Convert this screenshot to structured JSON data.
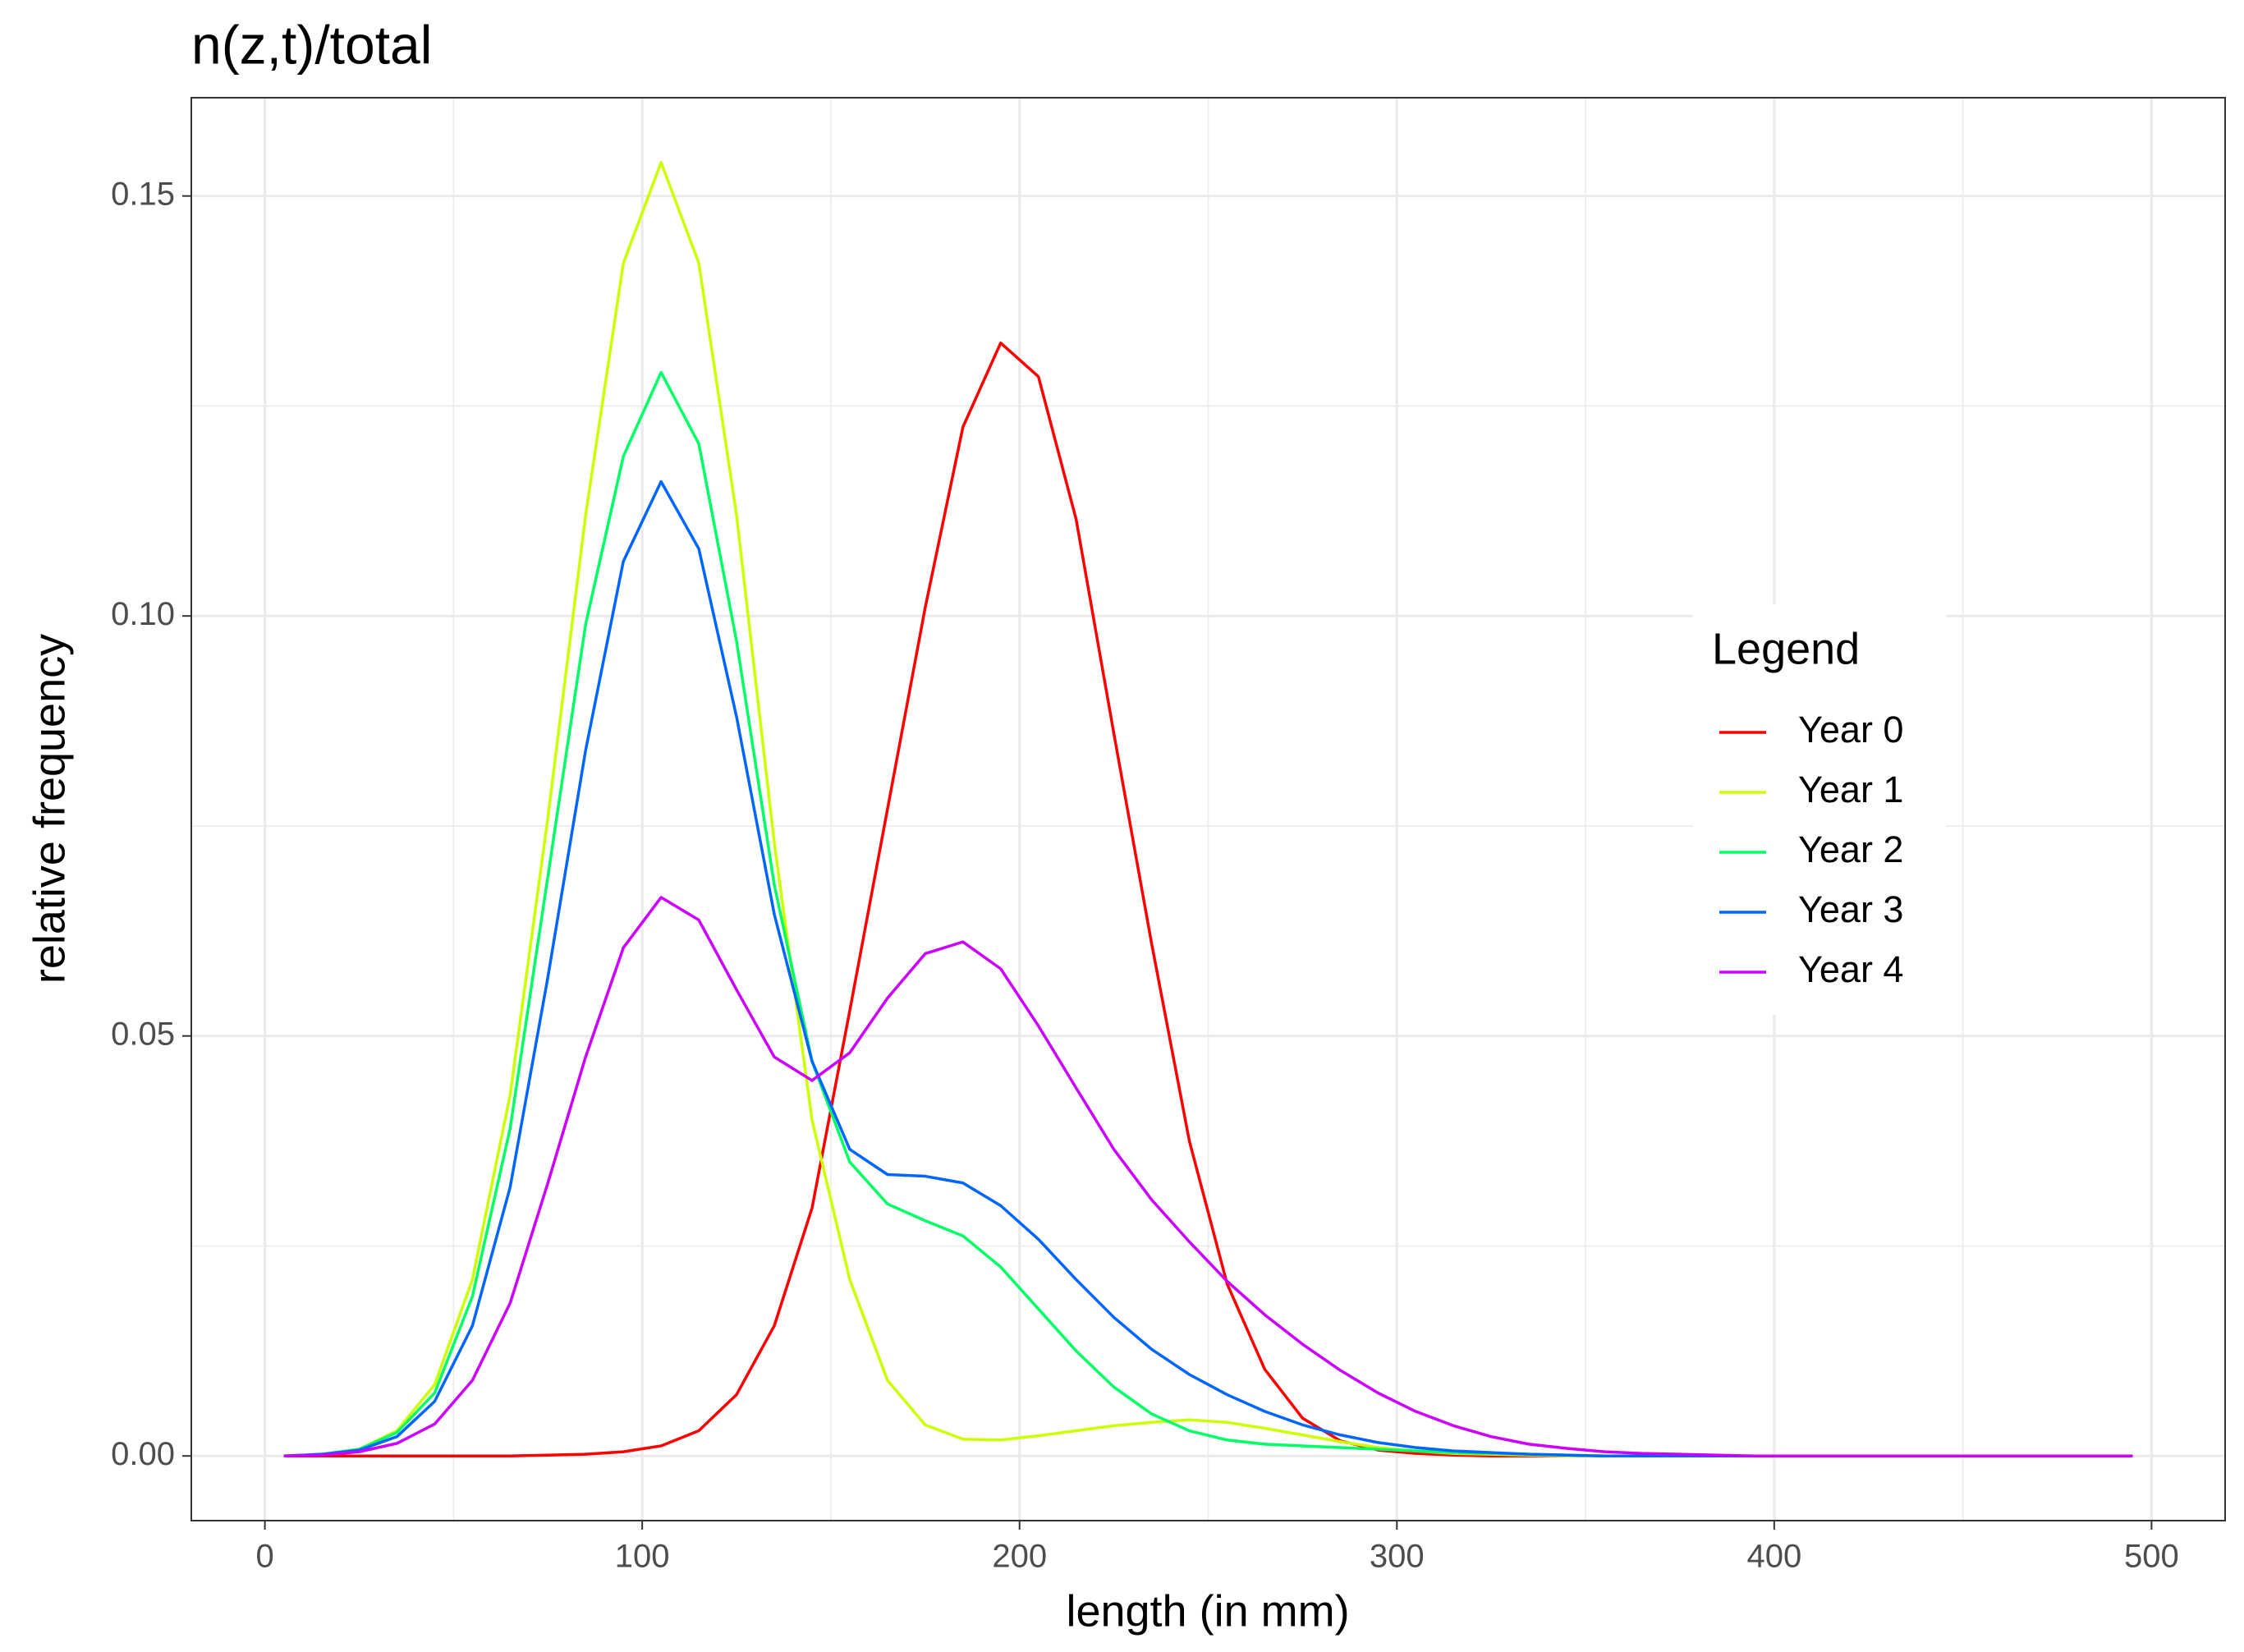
{
  "chart_data": {
    "type": "line",
    "title": "n(z,t)/total",
    "x_label": "length (in mm)",
    "y_label": "relative frequency",
    "legend_title": "Legend",
    "legend": "right",
    "grid": true,
    "minor_grid": true,
    "x": [
      5,
      15,
      25,
      35,
      45,
      55,
      65,
      75,
      85,
      95,
      105,
      115,
      125,
      135,
      145,
      155,
      165,
      175,
      185,
      195,
      205,
      215,
      225,
      235,
      245,
      255,
      265,
      275,
      285,
      295,
      305,
      315,
      325,
      335,
      345,
      355,
      365,
      375,
      385,
      395,
      405,
      415,
      425,
      435,
      445,
      455,
      465,
      475,
      485,
      495
    ],
    "series": [
      {
        "name": "Year 0",
        "color": "#FF0000",
        "values": [
          0,
          0,
          0,
          0,
          0,
          0,
          0,
          0.0001,
          0.0002,
          0.0005,
          0.0012,
          0.003,
          0.0073,
          0.0155,
          0.0295,
          0.053,
          0.077,
          0.101,
          0.1225,
          0.1325,
          0.1285,
          0.1115,
          0.086,
          0.061,
          0.0375,
          0.0205,
          0.0103,
          0.0045,
          0.0018,
          0.0007,
          0.0003,
          0.0001,
          0,
          0,
          0,
          0,
          0,
          0,
          0,
          0,
          0,
          0,
          0,
          0,
          0,
          0,
          0,
          0,
          0,
          0
        ]
      },
      {
        "name": "Year 1",
        "color": "#CCFF00",
        "values": [
          0,
          0.0002,
          0.0008,
          0.003,
          0.0085,
          0.021,
          0.043,
          0.076,
          0.112,
          0.142,
          0.154,
          0.142,
          0.112,
          0.073,
          0.04,
          0.021,
          0.009,
          0.0037,
          0.002,
          0.0019,
          0.0024,
          0.003,
          0.0036,
          0.004,
          0.0043,
          0.004,
          0.0033,
          0.0025,
          0.0017,
          0.001,
          0.0006,
          0.0003,
          0.0002,
          0.0001,
          0,
          0,
          0,
          0,
          0,
          0,
          0,
          0,
          0,
          0,
          0,
          0,
          0,
          0,
          0,
          0
        ]
      },
      {
        "name": "Year 2",
        "color": "#00FF66",
        "values": [
          0,
          0.0002,
          0.0008,
          0.0028,
          0.0075,
          0.019,
          0.039,
          0.069,
          0.099,
          0.119,
          0.129,
          0.1205,
          0.097,
          0.068,
          0.047,
          0.035,
          0.03,
          0.028,
          0.0262,
          0.0225,
          0.0175,
          0.0125,
          0.0082,
          0.005,
          0.003,
          0.0019,
          0.0014,
          0.0012,
          0.001,
          0.0008,
          0.0006,
          0.0004,
          0.0003,
          0.0002,
          0.0001,
          0,
          0,
          0,
          0,
          0,
          0,
          0,
          0,
          0,
          0,
          0,
          0,
          0,
          0,
          0
        ]
      },
      {
        "name": "Year 3",
        "color": "#0066FF",
        "values": [
          0,
          0.0002,
          0.0007,
          0.0023,
          0.0065,
          0.0155,
          0.032,
          0.057,
          0.084,
          0.1065,
          0.116,
          0.108,
          0.088,
          0.0645,
          0.047,
          0.0365,
          0.0335,
          0.0333,
          0.0325,
          0.0298,
          0.0258,
          0.021,
          0.0165,
          0.0127,
          0.0097,
          0.0073,
          0.0053,
          0.0037,
          0.0025,
          0.0016,
          0.001,
          0.0006,
          0.0004,
          0.0002,
          0.0001,
          0,
          0,
          0,
          0,
          0,
          0,
          0,
          0,
          0,
          0,
          0,
          0,
          0,
          0,
          0
        ]
      },
      {
        "name": "Year 4",
        "color": "#CC00FF",
        "values": [
          0,
          0.0001,
          0.0005,
          0.0015,
          0.0038,
          0.009,
          0.0182,
          0.0325,
          0.0475,
          0.0605,
          0.0665,
          0.0638,
          0.0555,
          0.0475,
          0.0447,
          0.048,
          0.0545,
          0.0598,
          0.0612,
          0.058,
          0.0512,
          0.0438,
          0.0365,
          0.0305,
          0.0255,
          0.0208,
          0.0168,
          0.0133,
          0.0102,
          0.0075,
          0.0053,
          0.0036,
          0.0023,
          0.0014,
          0.0009,
          0.0005,
          0.0003,
          0.0002,
          0.0001,
          0,
          0,
          0,
          0,
          0,
          0,
          0,
          0,
          0,
          0,
          0
        ]
      }
    ],
    "xlim": [
      -19.5,
      519.5
    ],
    "xticks": [
      0,
      100,
      200,
      300,
      400,
      500
    ],
    "ylim": [
      -0.0077,
      0.1617
    ],
    "yticks": [
      {
        "value": 0,
        "label": "0.00"
      },
      0.05,
      {
        "value": 0.1,
        "label": "0.10"
      },
      {
        "value": 0.15,
        "label": "0.15"
      }
    ]
  }
}
